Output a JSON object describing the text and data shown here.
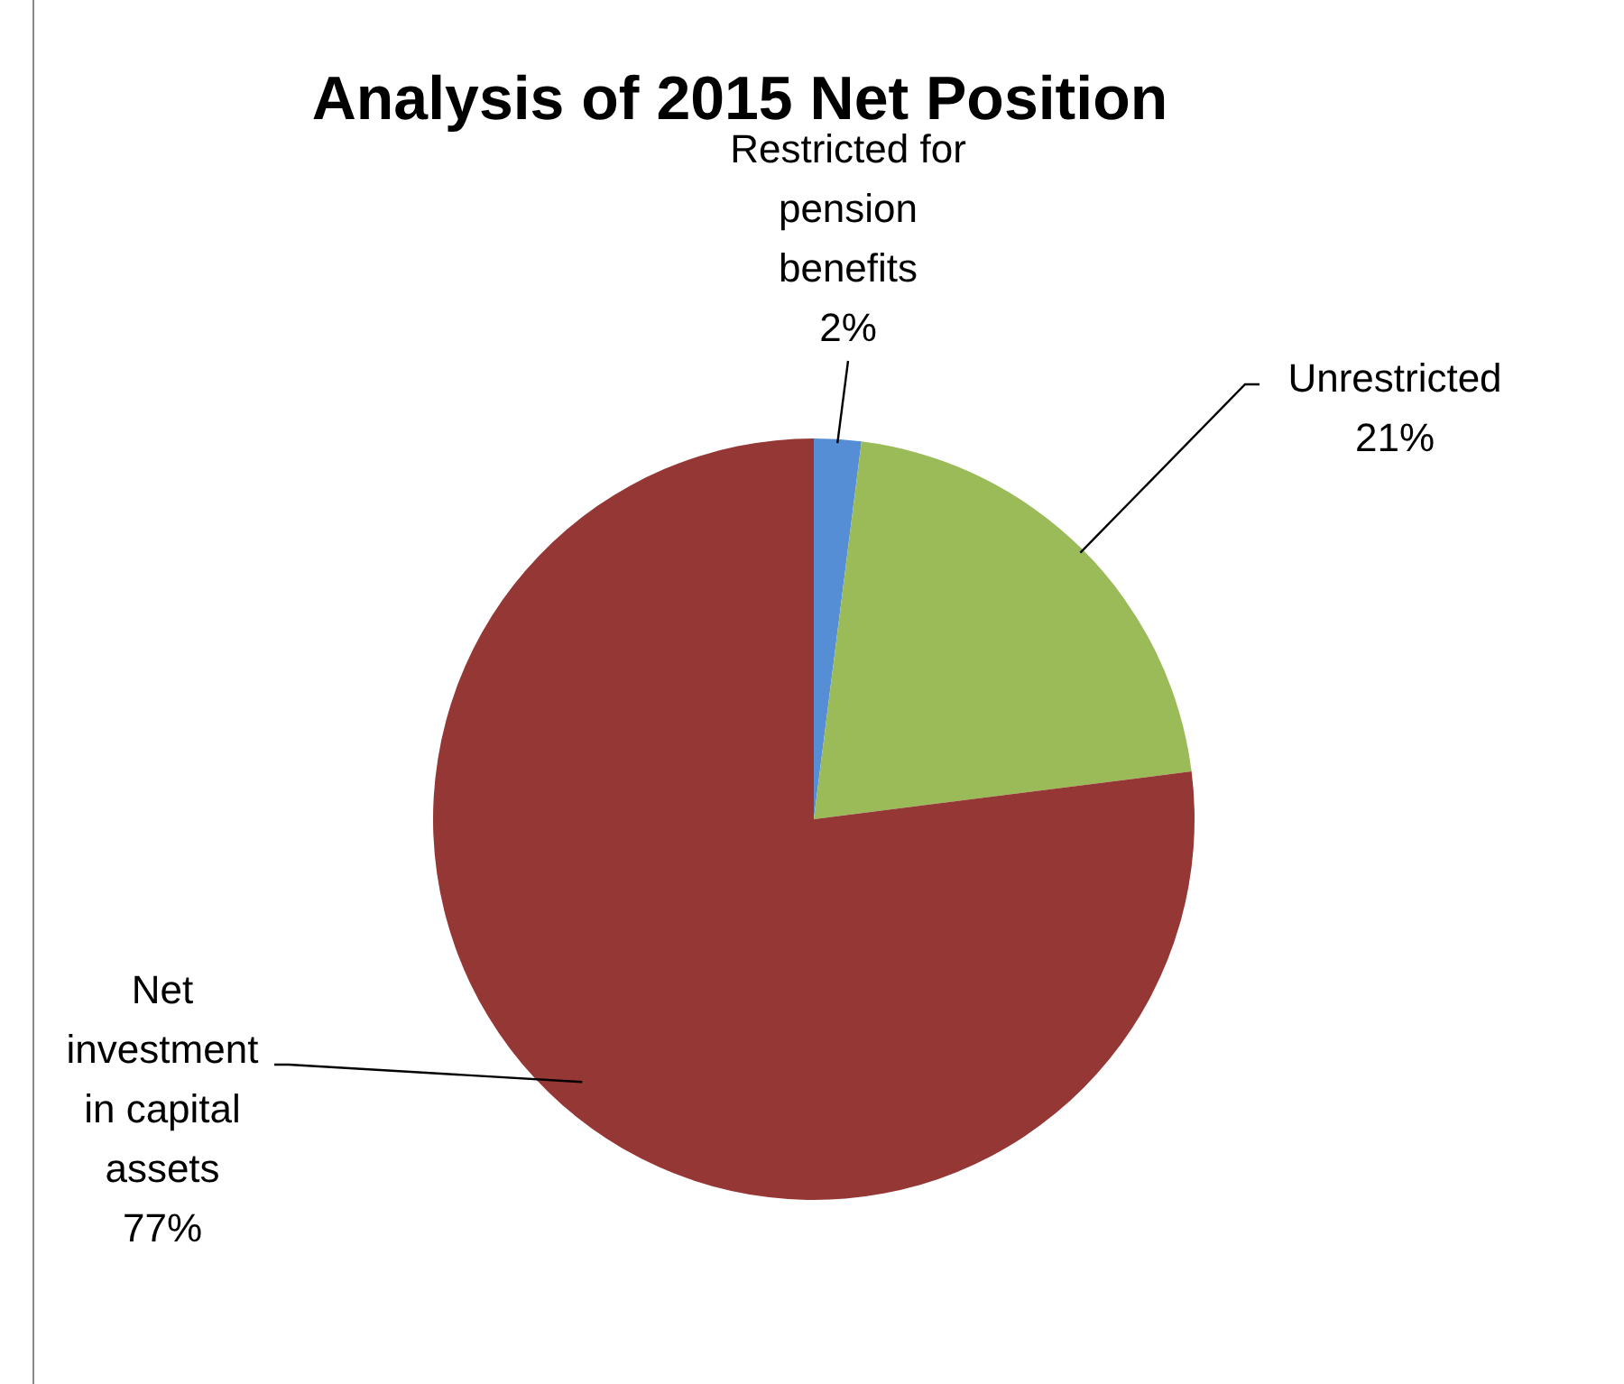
{
  "chart_data": {
    "type": "pie",
    "title": "Analysis of 2015 Net Position",
    "categories": [
      "Restricted for pension benefits",
      "Unrestricted",
      "Net investment in capital assets"
    ],
    "values": [
      2,
      21,
      77
    ],
    "value_labels": [
      "2%",
      "21%",
      "77%"
    ],
    "colors": [
      "#558ed5",
      "#9bbb59",
      "#953735"
    ]
  }
}
